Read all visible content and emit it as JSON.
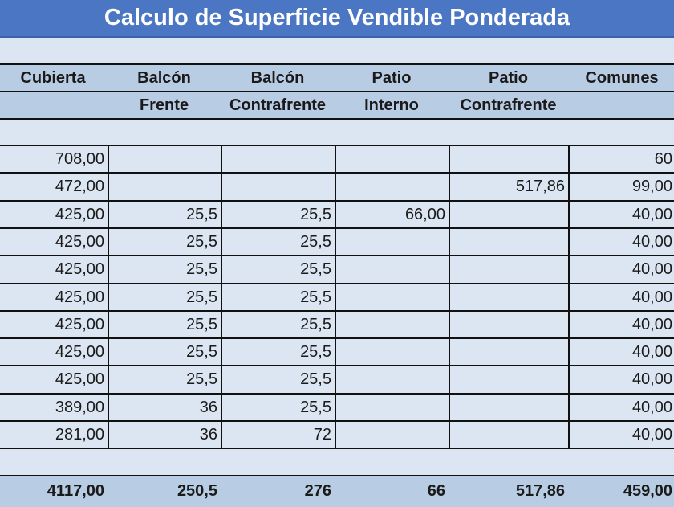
{
  "title": "Calculo de Superficie Vendible Ponderada",
  "header_row1": [
    "Cubierta",
    "Balcón",
    "Balcón",
    "Patio",
    "Patio",
    "Comunes"
  ],
  "header_row2": [
    "",
    "Frente",
    "Contrafrente",
    "Interno",
    "Contrafrente",
    ""
  ],
  "rows": [
    [
      "708,00",
      "",
      "",
      "",
      "",
      "60"
    ],
    [
      "472,00",
      "",
      "",
      "",
      "517,86",
      "99,00"
    ],
    [
      "425,00",
      "25,5",
      "25,5",
      "66,00",
      "",
      "40,00"
    ],
    [
      "425,00",
      "25,5",
      "25,5",
      "",
      "",
      "40,00"
    ],
    [
      "425,00",
      "25,5",
      "25,5",
      "",
      "",
      "40,00"
    ],
    [
      "425,00",
      "25,5",
      "25,5",
      "",
      "",
      "40,00"
    ],
    [
      "425,00",
      "25,5",
      "25,5",
      "",
      "",
      "40,00"
    ],
    [
      "425,00",
      "25,5",
      "25,5",
      "",
      "",
      "40,00"
    ],
    [
      "425,00",
      "25,5",
      "25,5",
      "",
      "",
      "40,00"
    ],
    [
      "389,00",
      "36",
      "25,5",
      "",
      "",
      "40,00"
    ],
    [
      "281,00",
      "36",
      "72",
      "",
      "",
      "40,00"
    ]
  ],
  "totals": [
    "4117,00",
    "250,5",
    "276",
    "66",
    "517,86",
    "459,00"
  ]
}
